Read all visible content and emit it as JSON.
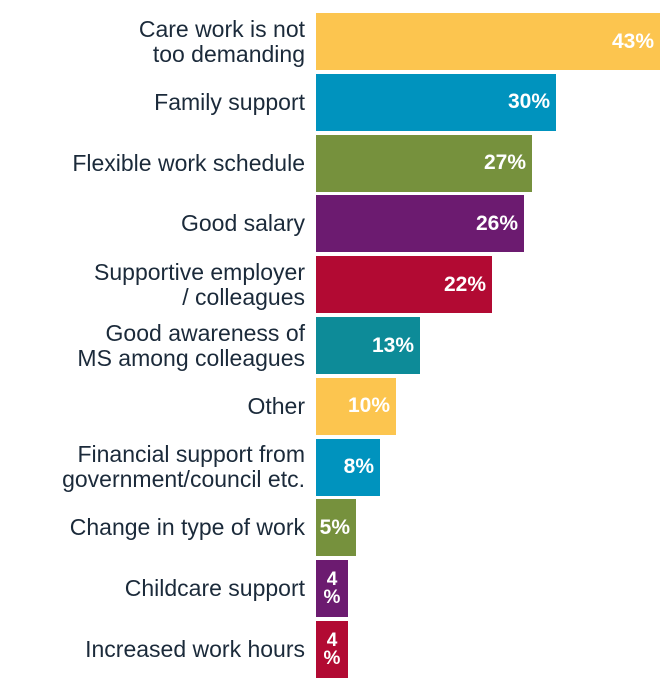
{
  "chart_data": {
    "type": "bar",
    "orientation": "horizontal",
    "categories": [
      "Care work is not\ntoo demanding",
      "Family support",
      "Flexible work schedule",
      "Good salary",
      "Supportive employer\n/ colleagues",
      "Good awareness of\nMS among colleagues",
      "Other",
      "Financial support from\ngovernment/council etc.",
      "Change in type of work",
      "Childcare support",
      "Increased work hours"
    ],
    "values": [
      43,
      30,
      27,
      26,
      22,
      13,
      10,
      8,
      5,
      4,
      4
    ],
    "value_labels": [
      "43%",
      "30%",
      "27%",
      "26%",
      "22%",
      "13%",
      "10%",
      "8%",
      "5%",
      "4\n%",
      "4\n%"
    ],
    "unit": "%",
    "xlim": [
      0,
      43
    ],
    "colors": [
      "#fcc54f",
      "#0093be",
      "#76913d",
      "#6c1b70",
      "#b20a33",
      "#0d8b98",
      "#fcc54f",
      "#0093be",
      "#76913d",
      "#6c1b70",
      "#b20a33"
    ],
    "grid": false,
    "legend": "none"
  }
}
